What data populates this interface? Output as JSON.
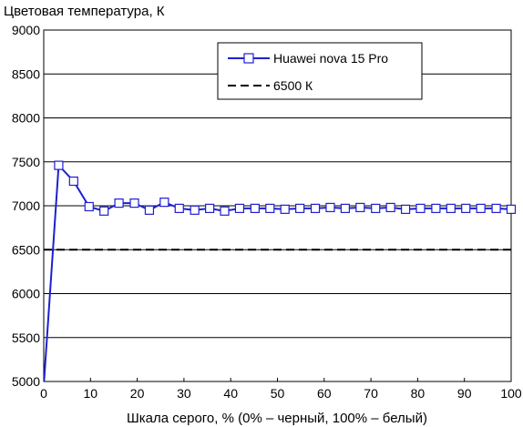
{
  "chart_data": {
    "type": "line",
    "ylabel": "Цветовая температура, К",
    "xlabel": "Шкала серого, % (0% – черный, 100% – белый)",
    "xlim": [
      0,
      100
    ],
    "ylim": [
      5000,
      9000
    ],
    "xticks": [
      "0",
      "10",
      "20",
      "30",
      "40",
      "50",
      "60",
      "70",
      "80",
      "90",
      "100"
    ],
    "yticks": [
      "5000",
      "5500",
      "6000",
      "6500",
      "7000",
      "7500",
      "8000",
      "8500",
      "9000"
    ],
    "grid": "horizontal",
    "legend_position": "top-right",
    "series": [
      {
        "name": "Huawei nova 15 Pro",
        "style": "solid-square-markers",
        "color": "#1f1fd0",
        "points": [
          [
            0,
            4950
          ],
          [
            3.2,
            7460
          ],
          [
            6.4,
            7280
          ],
          [
            9.7,
            6990
          ],
          [
            12.9,
            6940
          ],
          [
            16.1,
            7030
          ],
          [
            19.4,
            7030
          ],
          [
            22.6,
            6950
          ],
          [
            25.8,
            7040
          ],
          [
            29.0,
            6970
          ],
          [
            32.3,
            6950
          ],
          [
            35.5,
            6970
          ],
          [
            38.7,
            6940
          ],
          [
            41.9,
            6970
          ],
          [
            45.2,
            6970
          ],
          [
            48.4,
            6970
          ],
          [
            51.6,
            6960
          ],
          [
            54.8,
            6970
          ],
          [
            58.1,
            6970
          ],
          [
            61.3,
            6980
          ],
          [
            64.5,
            6970
          ],
          [
            67.7,
            6980
          ],
          [
            71.0,
            6970
          ],
          [
            74.2,
            6980
          ],
          [
            77.4,
            6960
          ],
          [
            80.6,
            6970
          ],
          [
            83.9,
            6970
          ],
          [
            87.1,
            6970
          ],
          [
            90.3,
            6970
          ],
          [
            93.5,
            6970
          ],
          [
            96.8,
            6970
          ],
          [
            100,
            6960
          ]
        ]
      },
      {
        "name": "6500 К",
        "style": "dashed",
        "color": "#000000",
        "points": [
          [
            0,
            6500
          ],
          [
            100,
            6500
          ]
        ]
      }
    ]
  }
}
